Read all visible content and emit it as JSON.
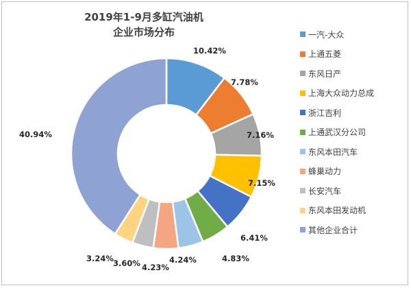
{
  "chart_data": {
    "type": "pie",
    "variant": "donut",
    "title_lines": [
      "2019年1-9月多缸汽油机",
      "企业市场分布"
    ],
    "legend_position": "right",
    "slices": [
      {
        "name": "一汽-大众",
        "value": 10.42,
        "label": "10.42%",
        "color": "#5b9bd5"
      },
      {
        "name": "上通五菱",
        "value": 7.78,
        "label": "7.78%",
        "color": "#ed7d31"
      },
      {
        "name": "东风日产",
        "value": 7.16,
        "label": "7.16%",
        "color": "#a5a5a5"
      },
      {
        "name": "上海大众动力总成",
        "value": 7.15,
        "label": "7.15%",
        "color": "#ffc000"
      },
      {
        "name": "浙江吉利",
        "value": 6.41,
        "label": "6.41%",
        "color": "#4472c4"
      },
      {
        "name": "上通武汉分公司",
        "value": 4.83,
        "label": "4.83%",
        "color": "#70ad47"
      },
      {
        "name": "东风本田汽车",
        "value": 4.24,
        "label": "4.24%",
        "color": "#9dc3e6"
      },
      {
        "name": "蜂巢动力",
        "value": 4.23,
        "label": "4.23%",
        "color": "#f4a582"
      },
      {
        "name": "长安汽车",
        "value": 3.6,
        "label": "3.60%",
        "color": "#bfbfbf"
      },
      {
        "name": "东风本田发动机",
        "value": 3.24,
        "label": "3.24%",
        "color": "#ffd37f"
      },
      {
        "name": "其他企业合计",
        "value": 40.94,
        "label": "40.94%",
        "color": "#8fa2d4"
      }
    ]
  }
}
